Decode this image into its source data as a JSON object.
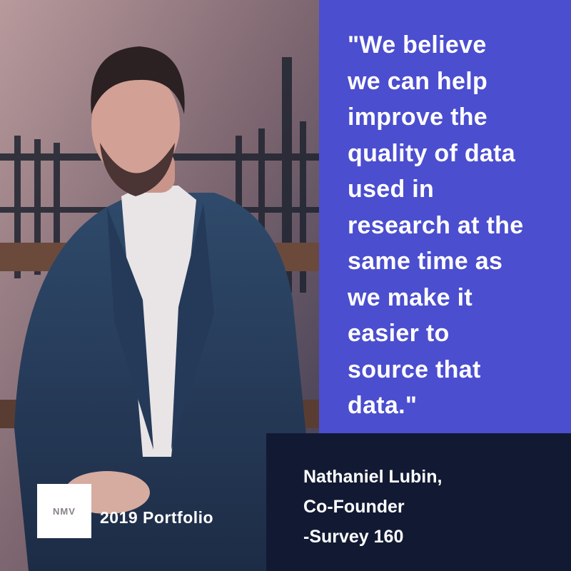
{
  "quote": {
    "lines": [
      "\"We believe",
      "we can help",
      "improve the",
      "quality of data",
      "used in",
      "research at the",
      "same time as",
      "we make it",
      "easier to",
      "source that",
      "data.\""
    ]
  },
  "attribution": {
    "lines": [
      "Nathaniel Lubin,",
      "Co-Founder",
      "-Survey 160"
    ]
  },
  "badge": {
    "logo": "NMV",
    "label": "2019 Portfolio"
  }
}
